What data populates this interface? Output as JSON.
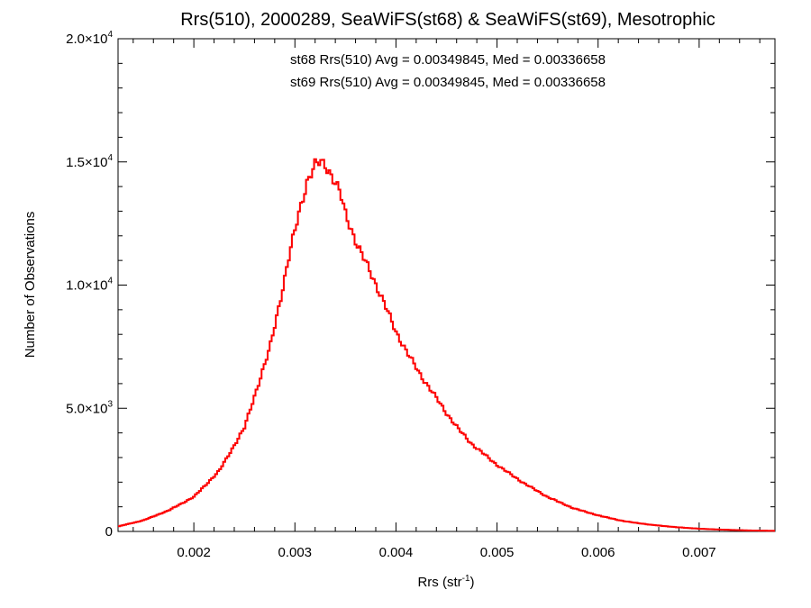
{
  "chart_data": {
    "type": "line",
    "title": "Rrs(510), 2000289, SeaWiFS(st68) & SeaWiFS(st69), Mesotrophic",
    "xlabel": "Rrs (str",
    "xlabel_sup": "-1",
    "xlabel_close": ")",
    "ylabel": "Number of Observations",
    "xlim": [
      0.00125,
      0.00775
    ],
    "ylim": [
      0,
      20000
    ],
    "x_ticks": [
      {
        "value": 0.002,
        "label": "0.002"
      },
      {
        "value": 0.003,
        "label": "0.003"
      },
      {
        "value": 0.004,
        "label": "0.004"
      },
      {
        "value": 0.005,
        "label": "0.005"
      },
      {
        "value": 0.006,
        "label": "0.006"
      },
      {
        "value": 0.007,
        "label": "0.007"
      }
    ],
    "y_ticks": [
      {
        "value": 0,
        "base": "0",
        "exp": ""
      },
      {
        "value": 5000,
        "base": "5.0×10",
        "exp": "3"
      },
      {
        "value": 10000,
        "base": "1.0×10",
        "exp": "4"
      },
      {
        "value": 15000,
        "base": "1.5×10",
        "exp": "4"
      },
      {
        "value": 20000,
        "base": "2.0×10",
        "exp": "4"
      }
    ],
    "annotations": [
      {
        "text": "st68 Rrs(510) Avg = 0.00349845, Med = 0.00336658",
        "color": "#000000"
      },
      {
        "text": "st69 Rrs(510) Avg = 0.00349845, Med = 0.00336658",
        "color": "#ff0000"
      }
    ],
    "series": [
      {
        "name": "st68",
        "color": "#000000",
        "x": [
          0.00125,
          0.0015,
          0.00175,
          0.002,
          0.00225,
          0.0025,
          0.00262,
          0.00275,
          0.00285,
          0.00295,
          0.00305,
          0.00312,
          0.0032,
          0.00325,
          0.0033,
          0.00337,
          0.00345,
          0.0035,
          0.00362,
          0.00375,
          0.00388,
          0.004,
          0.00412,
          0.00425,
          0.00437,
          0.0045,
          0.00462,
          0.00475,
          0.005,
          0.00525,
          0.0055,
          0.00575,
          0.006,
          0.00625,
          0.0065,
          0.00675,
          0.007,
          0.00725,
          0.0075,
          0.00775
        ],
        "y": [
          200,
          450,
          850,
          1400,
          2450,
          4200,
          5750,
          7400,
          9300,
          11300,
          13100,
          14200,
          14850,
          15000,
          14900,
          14400,
          13700,
          12900,
          11600,
          10500,
          9300,
          8100,
          7200,
          6300,
          5600,
          4800,
          4150,
          3550,
          2700,
          2000,
          1400,
          950,
          650,
          420,
          280,
          180,
          110,
          70,
          40,
          25
        ]
      },
      {
        "name": "st69",
        "color": "#ff0000",
        "x": [
          0.00125,
          0.0015,
          0.00175,
          0.002,
          0.00225,
          0.0025,
          0.00262,
          0.00275,
          0.00285,
          0.00295,
          0.00305,
          0.00312,
          0.0032,
          0.00325,
          0.0033,
          0.00337,
          0.00345,
          0.0035,
          0.00362,
          0.00375,
          0.00388,
          0.004,
          0.00412,
          0.00425,
          0.00437,
          0.0045,
          0.00462,
          0.00475,
          0.005,
          0.00525,
          0.0055,
          0.00575,
          0.006,
          0.00625,
          0.0065,
          0.00675,
          0.007,
          0.00725,
          0.0075,
          0.00775
        ],
        "y": [
          200,
          450,
          850,
          1400,
          2450,
          4200,
          5750,
          7400,
          9300,
          11300,
          13100,
          14200,
          14850,
          15000,
          14900,
          14400,
          13700,
          12900,
          11600,
          10500,
          9300,
          8100,
          7200,
          6300,
          5600,
          4800,
          4150,
          3550,
          2700,
          2000,
          1400,
          950,
          650,
          420,
          280,
          180,
          110,
          70,
          40,
          25
        ]
      }
    ]
  }
}
